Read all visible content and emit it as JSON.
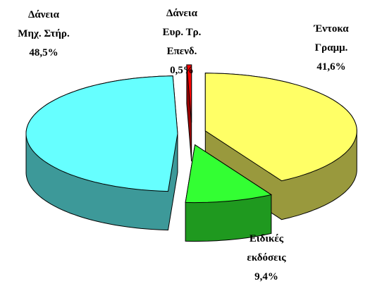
{
  "chart_data": {
    "type": "pie3d",
    "categories": [
      "Έντοκα\nΓραμμ.",
      "Ειδικές\nεκδόσεις",
      "Δάνεια\nΜηχ. Στήρ.",
      "Δάνεια\nΕυρ. Τρ.\nΕπενδ."
    ],
    "values": [
      41.6,
      9.4,
      48.5,
      0.5
    ],
    "value_labels": [
      "41,6%",
      "9,4%",
      "48,5%",
      "0,5%"
    ],
    "colors": [
      "#ffff66",
      "#33ff33",
      "#66ffff",
      "#ff0000"
    ]
  }
}
